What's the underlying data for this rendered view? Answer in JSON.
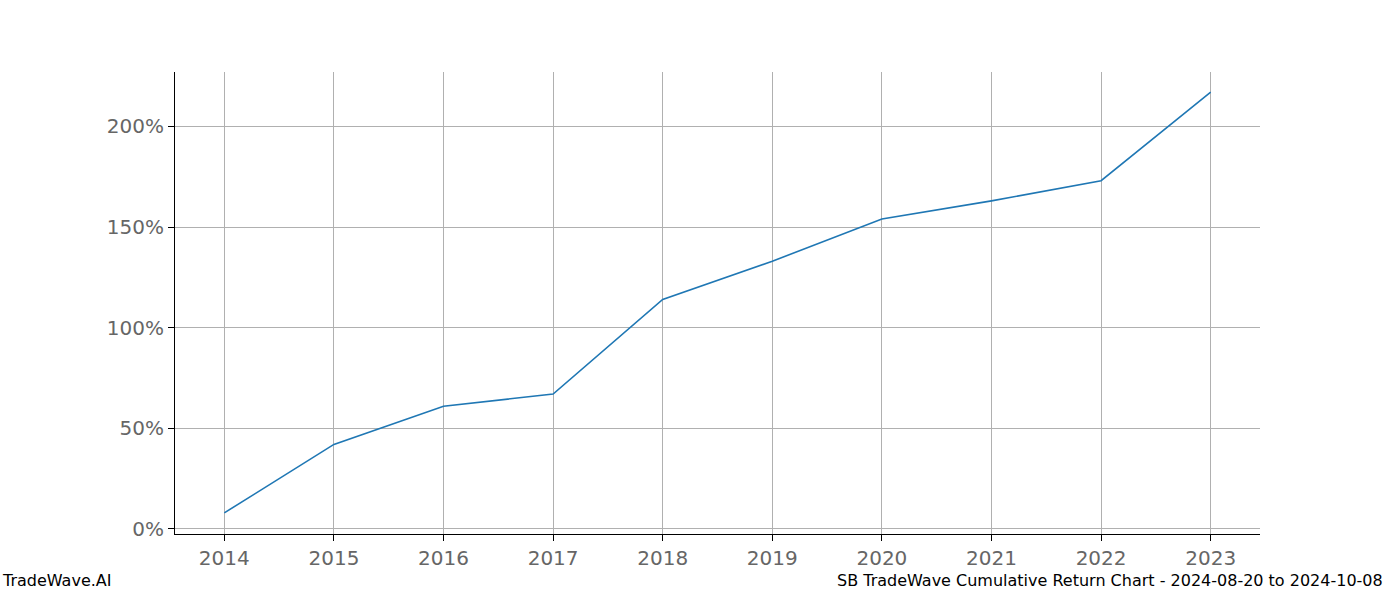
{
  "chart_data": {
    "type": "line",
    "x": [
      2014,
      2015,
      2016,
      2017,
      2018,
      2019,
      2020,
      2021,
      2022,
      2023
    ],
    "values": [
      8,
      42,
      61,
      67,
      114,
      133,
      154,
      163,
      173,
      217
    ],
    "color": "#1f77b4",
    "xlim": [
      2013.55,
      2023.45
    ],
    "xticks": [
      2014,
      2015,
      2016,
      2017,
      2018,
      2019,
      2020,
      2021,
      2022,
      2023
    ],
    "ylim": [
      -2.5,
      227
    ],
    "yticks": [
      {
        "value": 0,
        "label": "0%"
      },
      {
        "value": 50,
        "label": "50%"
      },
      {
        "value": 100,
        "label": "100%"
      },
      {
        "value": 150,
        "label": "150%"
      },
      {
        "value": 200,
        "label": "200%"
      }
    ],
    "grid": true,
    "annotations": [
      "TradeWave.AI",
      "SB TradeWave Cumulative Return Chart - 2024-08-20 to 2024-10-08"
    ]
  }
}
